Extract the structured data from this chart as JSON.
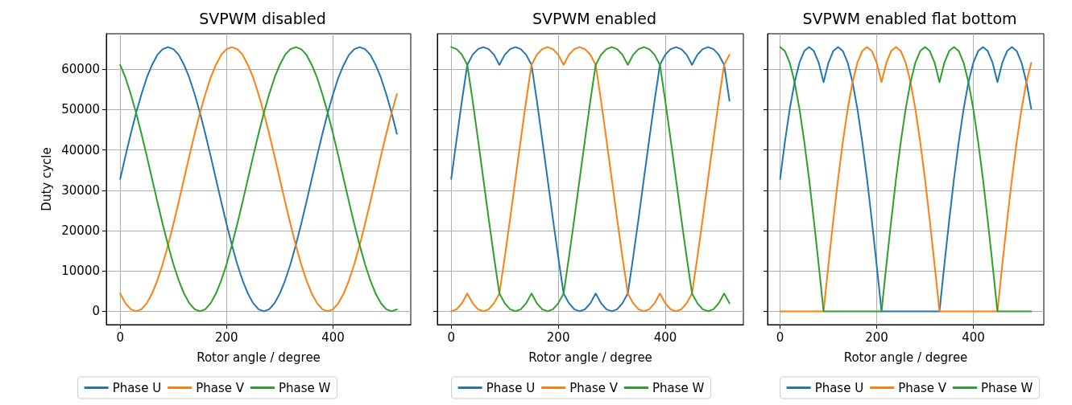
{
  "chart_data": [
    {
      "type": "line",
      "title": "SVPWM disabled",
      "xlabel": "Rotor angle / degree",
      "ylabel": "Duty cycle",
      "xlim": [
        -26,
        546
      ],
      "ylim": [
        -3300,
        68800
      ],
      "xticks": [
        0,
        200,
        400
      ],
      "yticks": [
        0,
        10000,
        20000,
        30000,
        40000,
        50000,
        60000
      ],
      "grid": true,
      "legend": "bottom",
      "marker": "none",
      "line_style": "solid",
      "x": [
        0,
        10,
        20,
        30,
        40,
        50,
        60,
        70,
        80,
        90,
        100,
        110,
        120,
        130,
        140,
        150,
        160,
        170,
        180,
        190,
        200,
        210,
        220,
        230,
        240,
        250,
        260,
        270,
        280,
        290,
        300,
        310,
        320,
        330,
        340,
        350,
        360,
        370,
        380,
        390,
        400,
        410,
        420,
        430,
        440,
        450,
        460,
        470,
        480,
        490,
        500,
        510,
        520
      ],
      "series": [
        {
          "name": "Phase U",
          "color": "#1f77b4",
          "values": [
            32800,
            38500,
            44000,
            49200,
            53800,
            57900,
            61100,
            63600,
            65000,
            65500,
            65000,
            63600,
            61100,
            57900,
            53800,
            49200,
            44000,
            38500,
            32800,
            27100,
            21600,
            16400,
            11700,
            7700,
            4400,
            2000,
            500,
            0,
            500,
            2000,
            4400,
            7700,
            11700,
            16400,
            21600,
            27100,
            32800,
            38500,
            44000,
            49200,
            53800,
            57900,
            61100,
            63600,
            65000,
            65500,
            65000,
            63600,
            61100,
            57900,
            53800,
            49200,
            44000
          ]
        },
        {
          "name": "Phase V",
          "color": "#ff7f0e",
          "values": [
            4400,
            2000,
            500,
            0,
            500,
            2000,
            4400,
            7700,
            11700,
            16400,
            21600,
            27100,
            32800,
            38500,
            44000,
            49200,
            53800,
            57900,
            61100,
            63600,
            65000,
            65500,
            65000,
            63600,
            61100,
            57900,
            53800,
            49200,
            44000,
            38500,
            32800,
            27100,
            21600,
            16400,
            11700,
            7700,
            4400,
            2000,
            500,
            0,
            500,
            2000,
            4400,
            7700,
            11700,
            16400,
            21600,
            27100,
            32800,
            38500,
            44000,
            49200,
            53800
          ]
        },
        {
          "name": "Phase W",
          "color": "#2ca02c",
          "values": [
            61100,
            57900,
            53800,
            49200,
            44000,
            38500,
            32800,
            27100,
            21600,
            16400,
            11700,
            7700,
            4400,
            2000,
            500,
            0,
            500,
            2000,
            4400,
            7700,
            11700,
            16400,
            21600,
            27100,
            32800,
            38500,
            44000,
            49200,
            53800,
            57900,
            61100,
            63600,
            65000,
            65500,
            65000,
            63600,
            61100,
            57900,
            53800,
            49200,
            44000,
            38500,
            32800,
            27100,
            21600,
            16400,
            11700,
            7700,
            4400,
            2000,
            500,
            0,
            500
          ]
        }
      ]
    },
    {
      "type": "line",
      "title": "SVPWM enabled",
      "xlabel": "Rotor angle / degree",
      "xlim": [
        -26,
        546
      ],
      "ylim": [
        -3300,
        68800
      ],
      "xticks": [
        0,
        200,
        400
      ],
      "yticks": [
        0,
        10000,
        20000,
        30000,
        40000,
        50000,
        60000
      ],
      "tick_labels": "x",
      "grid": true,
      "legend": "bottom",
      "marker": "none",
      "line_style": "solid",
      "x": [
        0,
        10,
        20,
        30,
        40,
        50,
        60,
        70,
        80,
        90,
        100,
        110,
        120,
        130,
        140,
        150,
        160,
        170,
        180,
        190,
        200,
        210,
        220,
        230,
        240,
        250,
        260,
        270,
        280,
        290,
        300,
        310,
        320,
        330,
        340,
        350,
        360,
        370,
        380,
        390,
        400,
        410,
        420,
        430,
        440,
        450,
        460,
        470,
        480,
        490,
        500,
        510,
        520
      ],
      "series": [
        {
          "name": "Phase U",
          "color": "#1f77b4",
          "values": [
            32800,
            42600,
            52200,
            61100,
            63600,
            65000,
            65500,
            65000,
            63600,
            61100,
            63600,
            65000,
            65500,
            65000,
            63600,
            61100,
            52200,
            42600,
            32800,
            22900,
            13400,
            4400,
            2000,
            500,
            0,
            500,
            2000,
            4400,
            2000,
            500,
            0,
            500,
            2000,
            4400,
            13400,
            22900,
            32800,
            42600,
            52200,
            61100,
            63600,
            65000,
            65500,
            65000,
            63600,
            61100,
            63600,
            65000,
            65500,
            65000,
            63600,
            61100,
            52200
          ]
        },
        {
          "name": "Phase V",
          "color": "#ff7f0e",
          "values": [
            0,
            500,
            2000,
            4400,
            2000,
            500,
            0,
            500,
            2000,
            4400,
            13400,
            22900,
            32800,
            42600,
            52200,
            61100,
            63600,
            65000,
            65500,
            65000,
            63600,
            61100,
            63600,
            65000,
            65500,
            65000,
            63600,
            61100,
            52200,
            42600,
            32800,
            22900,
            13400,
            4400,
            2000,
            500,
            0,
            500,
            2000,
            4400,
            2000,
            500,
            0,
            500,
            2000,
            4400,
            13400,
            22900,
            32800,
            42600,
            52200,
            61100,
            63600
          ]
        },
        {
          "name": "Phase W",
          "color": "#2ca02c",
          "values": [
            65500,
            65000,
            63600,
            61100,
            52200,
            42600,
            32800,
            22900,
            13400,
            4400,
            2000,
            500,
            0,
            500,
            2000,
            4400,
            2000,
            500,
            0,
            500,
            2000,
            4400,
            13400,
            22900,
            32800,
            42600,
            52200,
            61100,
            63600,
            65000,
            65500,
            65000,
            63600,
            61100,
            63600,
            65000,
            65500,
            65000,
            63600,
            61100,
            52200,
            42600,
            32800,
            22900,
            13400,
            4400,
            2000,
            500,
            0,
            500,
            2000,
            4400,
            2000
          ]
        }
      ]
    },
    {
      "type": "line",
      "title": "SVPWM enabled flat bottom",
      "xlabel": "Rotor angle / degree",
      "xlim": [
        -26,
        546
      ],
      "ylim": [
        -3300,
        68800
      ],
      "xticks": [
        0,
        200,
        400
      ],
      "yticks": [
        0,
        10000,
        20000,
        30000,
        40000,
        50000,
        60000
      ],
      "tick_labels": "x",
      "grid": true,
      "legend": "bottom",
      "marker": "none",
      "line_style": "solid",
      "x": [
        0,
        10,
        20,
        30,
        40,
        50,
        60,
        70,
        80,
        90,
        100,
        110,
        120,
        130,
        140,
        150,
        160,
        170,
        180,
        190,
        200,
        210,
        220,
        230,
        240,
        250,
        260,
        270,
        280,
        290,
        300,
        310,
        320,
        330,
        340,
        350,
        360,
        370,
        380,
        390,
        400,
        410,
        420,
        430,
        440,
        450,
        460,
        470,
        480,
        490,
        500,
        510,
        520
      ],
      "series": [
        {
          "name": "Phase U",
          "color": "#1f77b4",
          "values": [
            32800,
            42100,
            50200,
            56800,
            61600,
            64500,
            65500,
            64500,
            61600,
            56800,
            61600,
            64500,
            65500,
            64500,
            61600,
            56800,
            50200,
            42100,
            32800,
            22400,
            11400,
            0,
            0,
            0,
            0,
            0,
            0,
            0,
            0,
            0,
            0,
            0,
            0,
            0,
            11400,
            22400,
            32800,
            42100,
            50200,
            56800,
            61600,
            64500,
            65500,
            64500,
            61600,
            56800,
            61600,
            64500,
            65500,
            64500,
            61600,
            56800,
            50200
          ]
        },
        {
          "name": "Phase V",
          "color": "#ff7f0e",
          "values": [
            0,
            0,
            0,
            0,
            0,
            0,
            0,
            0,
            0,
            0,
            11400,
            22400,
            32800,
            42100,
            50200,
            56800,
            61600,
            64500,
            65500,
            64500,
            61600,
            56800,
            61600,
            64500,
            65500,
            64500,
            61600,
            56800,
            50200,
            42100,
            32800,
            22400,
            11400,
            0,
            0,
            0,
            0,
            0,
            0,
            0,
            0,
            0,
            0,
            0,
            0,
            0,
            11400,
            22400,
            32800,
            42100,
            50200,
            56800,
            61600
          ]
        },
        {
          "name": "Phase W",
          "color": "#2ca02c",
          "values": [
            65500,
            64500,
            61600,
            56800,
            50200,
            42100,
            32800,
            22400,
            11400,
            0,
            0,
            0,
            0,
            0,
            0,
            0,
            0,
            0,
            0,
            0,
            0,
            0,
            11400,
            22400,
            32800,
            42100,
            50200,
            56800,
            61600,
            64500,
            65500,
            64500,
            61600,
            56800,
            61600,
            64500,
            65500,
            64500,
            61600,
            56800,
            50200,
            42100,
            32800,
            22400,
            11400,
            0,
            0,
            0,
            0,
            0,
            0,
            0,
            0
          ]
        }
      ]
    }
  ]
}
